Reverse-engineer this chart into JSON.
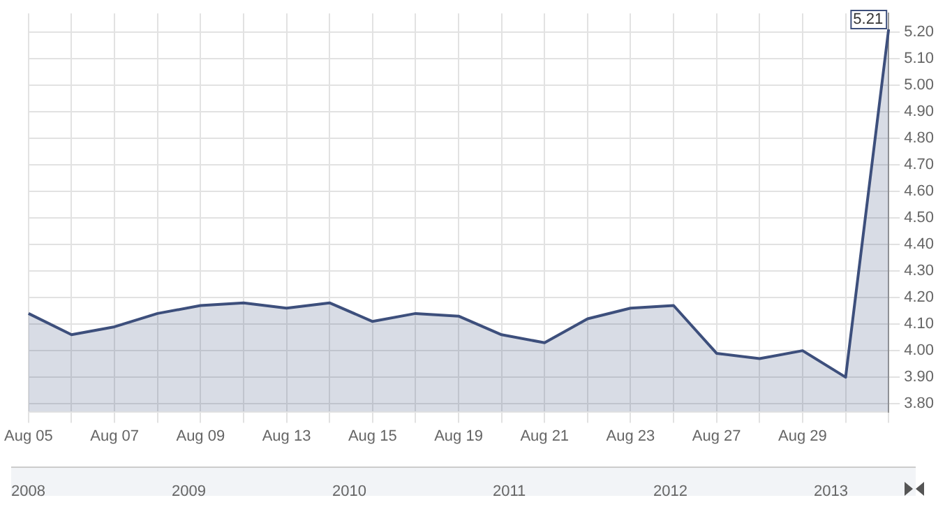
{
  "chart_data": {
    "type": "area",
    "categories": [
      "Aug 05",
      null,
      "Aug 07",
      null,
      "Aug 09",
      null,
      "Aug 13",
      null,
      "Aug 15",
      null,
      "Aug 19",
      null,
      "Aug 21",
      null,
      "Aug 23",
      null,
      "Aug 27",
      null,
      "Aug 29",
      null,
      null
    ],
    "series": [
      {
        "color": "#3d4f7c",
        "values": [
          4.14,
          4.06,
          4.09,
          4.14,
          4.17,
          4.18,
          4.16,
          4.18,
          4.11,
          4.14,
          4.13,
          4.06,
          4.03,
          4.12,
          4.16,
          4.17,
          3.99,
          3.97,
          4.0,
          3.9,
          5.21
        ],
        "value_labels": [
          null,
          null,
          null,
          null,
          null,
          null,
          null,
          null,
          null,
          null,
          null,
          null,
          null,
          null,
          null,
          null,
          null,
          null,
          null,
          null,
          "5.21"
        ]
      }
    ],
    "ylim": [
      3.77,
      5.27
    ],
    "yticks": [
      {
        "value": 3.8,
        "label": "3.80"
      },
      {
        "value": 3.9,
        "label": "3.90"
      },
      {
        "value": 4.0,
        "label": "4.00"
      },
      {
        "value": 4.1,
        "label": "4.10"
      },
      {
        "value": 4.2,
        "label": "4.20"
      },
      {
        "value": 4.3,
        "label": "4.30"
      },
      {
        "value": 4.4,
        "label": "4.40"
      },
      {
        "value": 4.5,
        "label": "4.50"
      },
      {
        "value": 4.6,
        "label": "4.60"
      },
      {
        "value": 4.7,
        "label": "4.70"
      },
      {
        "value": 4.8,
        "label": "4.80"
      },
      {
        "value": 4.9,
        "label": "4.90"
      },
      {
        "value": 5.0,
        "label": "5.00"
      },
      {
        "value": 5.1,
        "label": "5.10"
      },
      {
        "value": 5.2,
        "label": "5.20"
      }
    ],
    "grid": true,
    "legend": false,
    "marker": "none",
    "annotations": [
      "2008",
      "2009",
      "2010",
      "2011",
      "2012",
      "2013"
    ]
  }
}
